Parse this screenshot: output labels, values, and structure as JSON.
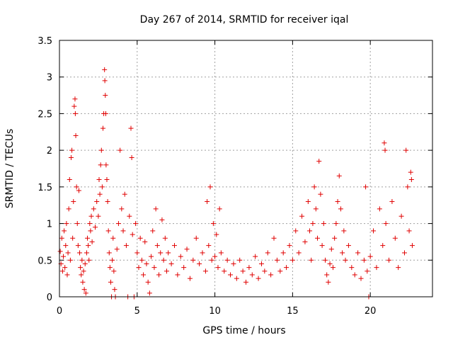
{
  "chart_data": {
    "type": "scatter",
    "title": "Day 267 of 2014, SRMTID for receiver iqal",
    "xlabel": "GPS time / hours",
    "ylabel": "SRMTID / TECUs",
    "xlim": [
      0,
      24
    ],
    "ylim": [
      0,
      3.5
    ],
    "xticks": [
      0,
      5,
      10,
      15,
      20
    ],
    "xtick_labels": [
      "0",
      "5",
      "10",
      "15",
      "20"
    ],
    "yticks": [
      0,
      0.5,
      1,
      1.5,
      2,
      2.5,
      3,
      3.5
    ],
    "ytick_labels": [
      "0",
      "0.5",
      "1",
      "1.5",
      "2",
      "2.5",
      "3",
      "3.5"
    ],
    "grid": true,
    "marker": "+",
    "series": [
      {
        "name": "SRMTID",
        "color": "#e00000",
        "points": [
          [
            0.05,
            0.62
          ],
          [
            0.1,
            0.45
          ],
          [
            0.15,
            0.8
          ],
          [
            0.2,
            0.35
          ],
          [
            0.25,
            0.55
          ],
          [
            0.3,
            0.9
          ],
          [
            0.35,
            0.4
          ],
          [
            0.4,
            0.7
          ],
          [
            0.45,
            1.0
          ],
          [
            0.5,
            0.3
          ],
          [
            0.55,
            0.6
          ],
          [
            0.6,
            1.2
          ],
          [
            0.65,
            1.6
          ],
          [
            0.7,
            0.5
          ],
          [
            0.75,
            1.9
          ],
          [
            0.8,
            2.0
          ],
          [
            0.85,
            0.8
          ],
          [
            0.9,
            1.3
          ],
          [
            0.95,
            2.6
          ],
          [
            1.0,
            2.7
          ],
          [
            1.02,
            2.5
          ],
          [
            1.05,
            2.2
          ],
          [
            1.1,
            1.5
          ],
          [
            1.15,
            1.0
          ],
          [
            1.2,
            0.7
          ],
          [
            1.25,
            1.45
          ],
          [
            1.3,
            0.6
          ],
          [
            1.35,
            0.4
          ],
          [
            1.4,
            0.3
          ],
          [
            1.45,
            0.5
          ],
          [
            1.5,
            0.2
          ],
          [
            1.55,
            0.35
          ],
          [
            1.6,
            0.1
          ],
          [
            1.65,
            0.45
          ],
          [
            1.7,
            0.05
          ],
          [
            1.75,
            0.6
          ],
          [
            1.8,
            0.8
          ],
          [
            1.85,
            0.7
          ],
          [
            1.9,
            0.5
          ],
          [
            1.95,
            1.0
          ],
          [
            2.0,
            0.9
          ],
          [
            2.05,
            1.1
          ],
          [
            2.1,
            0.75
          ],
          [
            2.2,
            1.2
          ],
          [
            2.3,
            0.95
          ],
          [
            2.4,
            1.3
          ],
          [
            2.5,
            1.1
          ],
          [
            2.55,
            1.6
          ],
          [
            2.6,
            1.4
          ],
          [
            2.65,
            1.8
          ],
          [
            2.7,
            2.0
          ],
          [
            2.75,
            1.5
          ],
          [
            2.8,
            2.3
          ],
          [
            2.85,
            2.5
          ],
          [
            2.9,
            3.1
          ],
          [
            2.92,
            2.95
          ],
          [
            2.95,
            2.75
          ],
          [
            2.98,
            2.5
          ],
          [
            3.0,
            1.8
          ],
          [
            3.05,
            1.6
          ],
          [
            3.1,
            1.3
          ],
          [
            3.15,
            0.9
          ],
          [
            3.2,
            0.6
          ],
          [
            3.25,
            0.4
          ],
          [
            3.3,
            0.2
          ],
          [
            3.35,
            0.0
          ],
          [
            3.4,
            0.5
          ],
          [
            3.45,
            0.8
          ],
          [
            3.5,
            0.35
          ],
          [
            3.55,
            0.1
          ],
          [
            3.6,
            0.0
          ],
          [
            3.7,
            0.65
          ],
          [
            3.8,
            1.0
          ],
          [
            3.9,
            2.0
          ],
          [
            4.0,
            1.2
          ],
          [
            4.1,
            0.9
          ],
          [
            4.2,
            1.4
          ],
          [
            4.3,
            0.7
          ],
          [
            4.4,
            0.0
          ],
          [
            4.5,
            1.1
          ],
          [
            4.6,
            2.3
          ],
          [
            4.65,
            1.9
          ],
          [
            4.7,
            0.85
          ],
          [
            4.8,
            0.0
          ],
          [
            4.9,
            1.0
          ],
          [
            5.0,
            0.6
          ],
          [
            5.1,
            0.4
          ],
          [
            5.2,
            0.8
          ],
          [
            5.3,
            0.5
          ],
          [
            5.4,
            0.3
          ],
          [
            5.5,
            0.75
          ],
          [
            5.6,
            0.45
          ],
          [
            5.7,
            0.2
          ],
          [
            5.8,
            0.05
          ],
          [
            5.9,
            0.55
          ],
          [
            6.0,
            0.9
          ],
          [
            6.1,
            0.4
          ],
          [
            6.2,
            1.2
          ],
          [
            6.3,
            0.7
          ],
          [
            6.4,
            0.3
          ],
          [
            6.5,
            0.6
          ],
          [
            6.6,
            1.05
          ],
          [
            6.7,
            0.5
          ],
          [
            6.8,
            0.8
          ],
          [
            6.9,
            0.35
          ],
          [
            7.0,
            0.6
          ],
          [
            7.2,
            0.45
          ],
          [
            7.4,
            0.7
          ],
          [
            7.6,
            0.3
          ],
          [
            7.8,
            0.55
          ],
          [
            8.0,
            0.4
          ],
          [
            8.2,
            0.65
          ],
          [
            8.4,
            0.25
          ],
          [
            8.6,
            0.5
          ],
          [
            8.8,
            0.8
          ],
          [
            9.0,
            0.45
          ],
          [
            9.2,
            0.6
          ],
          [
            9.4,
            0.35
          ],
          [
            9.5,
            1.3
          ],
          [
            9.6,
            0.7
          ],
          [
            9.7,
            1.5
          ],
          [
            9.8,
            0.5
          ],
          [
            9.9,
            1.0
          ],
          [
            10.0,
            0.55
          ],
          [
            10.1,
            0.85
          ],
          [
            10.2,
            0.4
          ],
          [
            10.3,
            1.2
          ],
          [
            10.4,
            0.6
          ],
          [
            10.6,
            0.35
          ],
          [
            10.8,
            0.5
          ],
          [
            11.0,
            0.3
          ],
          [
            11.2,
            0.45
          ],
          [
            11.4,
            0.25
          ],
          [
            11.6,
            0.5
          ],
          [
            11.8,
            0.35
          ],
          [
            12.0,
            0.2
          ],
          [
            12.2,
            0.4
          ],
          [
            12.4,
            0.3
          ],
          [
            12.6,
            0.55
          ],
          [
            12.8,
            0.25
          ],
          [
            13.0,
            0.45
          ],
          [
            13.2,
            0.35
          ],
          [
            13.4,
            0.6
          ],
          [
            13.6,
            0.3
          ],
          [
            13.8,
            0.8
          ],
          [
            14.0,
            0.5
          ],
          [
            14.2,
            0.35
          ],
          [
            14.4,
            0.6
          ],
          [
            14.6,
            0.4
          ],
          [
            14.8,
            0.7
          ],
          [
            15.0,
            0.5
          ],
          [
            15.2,
            0.9
          ],
          [
            15.4,
            0.6
          ],
          [
            15.6,
            1.1
          ],
          [
            15.8,
            0.75
          ],
          [
            16.0,
            1.3
          ],
          [
            16.1,
            0.9
          ],
          [
            16.2,
            0.5
          ],
          [
            16.3,
            1.0
          ],
          [
            16.4,
            1.5
          ],
          [
            16.5,
            1.2
          ],
          [
            16.6,
            0.8
          ],
          [
            16.7,
            1.85
          ],
          [
            16.8,
            1.4
          ],
          [
            16.9,
            0.7
          ],
          [
            17.0,
            1.0
          ],
          [
            17.1,
            0.5
          ],
          [
            17.2,
            0.3
          ],
          [
            17.3,
            0.2
          ],
          [
            17.4,
            0.45
          ],
          [
            17.5,
            0.65
          ],
          [
            17.6,
            0.4
          ],
          [
            17.7,
            0.8
          ],
          [
            17.8,
            1.0
          ],
          [
            17.9,
            1.3
          ],
          [
            18.0,
            1.65
          ],
          [
            18.1,
            1.2
          ],
          [
            18.2,
            0.6
          ],
          [
            18.3,
            0.9
          ],
          [
            18.4,
            0.5
          ],
          [
            18.6,
            0.7
          ],
          [
            18.8,
            0.4
          ],
          [
            19.0,
            0.3
          ],
          [
            19.2,
            0.6
          ],
          [
            19.4,
            0.25
          ],
          [
            19.6,
            0.5
          ],
          [
            19.7,
            1.5
          ],
          [
            19.8,
            0.35
          ],
          [
            19.9,
            0.0
          ],
          [
            20.0,
            0.55
          ],
          [
            20.2,
            0.9
          ],
          [
            20.4,
            0.4
          ],
          [
            20.6,
            1.2
          ],
          [
            20.8,
            0.7
          ],
          [
            20.9,
            2.1
          ],
          [
            20.95,
            2.0
          ],
          [
            21.0,
            1.0
          ],
          [
            21.2,
            0.5
          ],
          [
            21.4,
            1.3
          ],
          [
            21.6,
            0.8
          ],
          [
            21.8,
            0.4
          ],
          [
            22.0,
            1.1
          ],
          [
            22.2,
            0.6
          ],
          [
            22.3,
            2.0
          ],
          [
            22.4,
            1.5
          ],
          [
            22.5,
            0.9
          ],
          [
            22.6,
            1.7
          ],
          [
            22.65,
            1.6
          ],
          [
            22.7,
            0.7
          ]
        ]
      }
    ]
  }
}
